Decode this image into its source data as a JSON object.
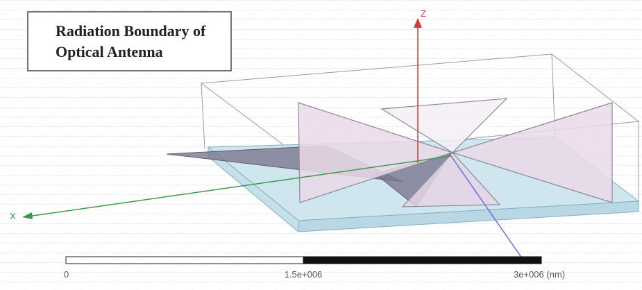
{
  "title": {
    "lines": [
      "Radiation Boundary of",
      "Optical Antenna"
    ]
  },
  "axes": {
    "z": "Z",
    "x": "X"
  },
  "scale_bar": {
    "labels": [
      "0",
      "1.5e+006",
      "3e+006 (nm)"
    ]
  }
}
